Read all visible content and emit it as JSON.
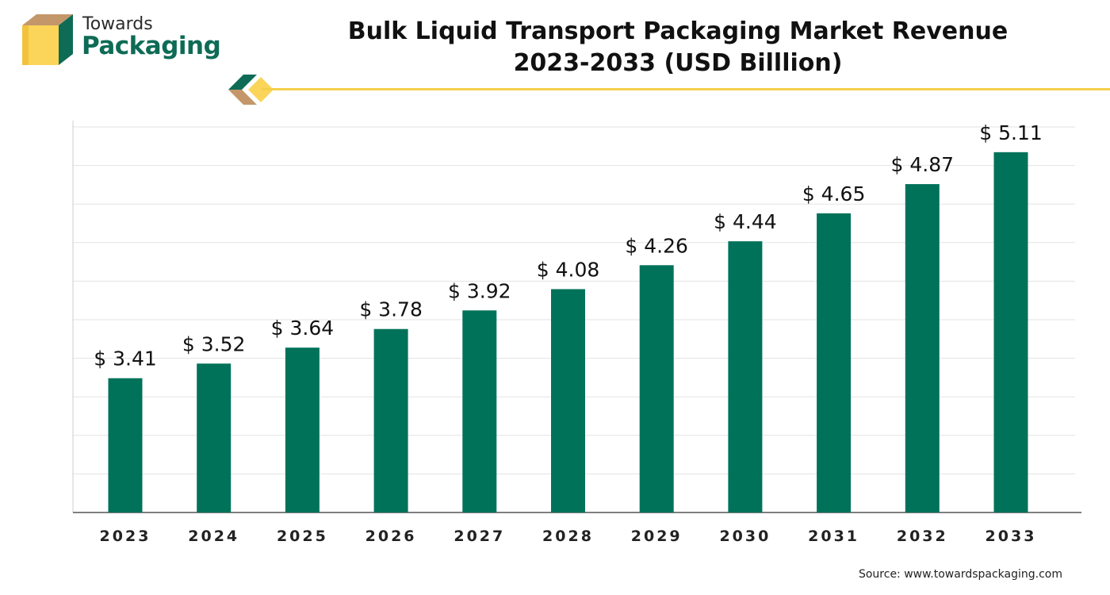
{
  "logo": {
    "line1": "Towards",
    "line2": "Packaging"
  },
  "title": {
    "line1": "Bulk Liquid Transport Packaging Market Revenue",
    "line2": "2023-2033 (USD Billlion)"
  },
  "source": "Source: www.towardspackaging.com",
  "colors": {
    "bar": "#00725a",
    "grid": "#e3e3e3",
    "axis": "#555555",
    "accent_yellow": "#f5cf4b",
    "logo_green": "#0e6b55",
    "logo_tan": "#c4976a"
  },
  "chart_data": {
    "type": "bar",
    "title": "Bulk Liquid Transport Packaging Market Revenue 2023-2033 (USD Billlion)",
    "categories": [
      "2023",
      "2024",
      "2025",
      "2026",
      "2027",
      "2028",
      "2029",
      "2030",
      "2031",
      "2032",
      "2033"
    ],
    "values": [
      3.41,
      3.52,
      3.64,
      3.78,
      3.92,
      4.08,
      4.26,
      4.44,
      4.65,
      4.87,
      5.11
    ],
    "labels": [
      "$ 3.41",
      "$ 3.52",
      "$ 3.64",
      "$ 3.78",
      "$ 3.92",
      "$ 4.08",
      "$ 4.26",
      "$ 4.44",
      "$ 4.65",
      "$ 4.87",
      "$ 5.11"
    ],
    "xlabel": "",
    "ylabel": "",
    "ylim": [
      2.4,
      5.3
    ],
    "grid": true,
    "legend": "none"
  }
}
